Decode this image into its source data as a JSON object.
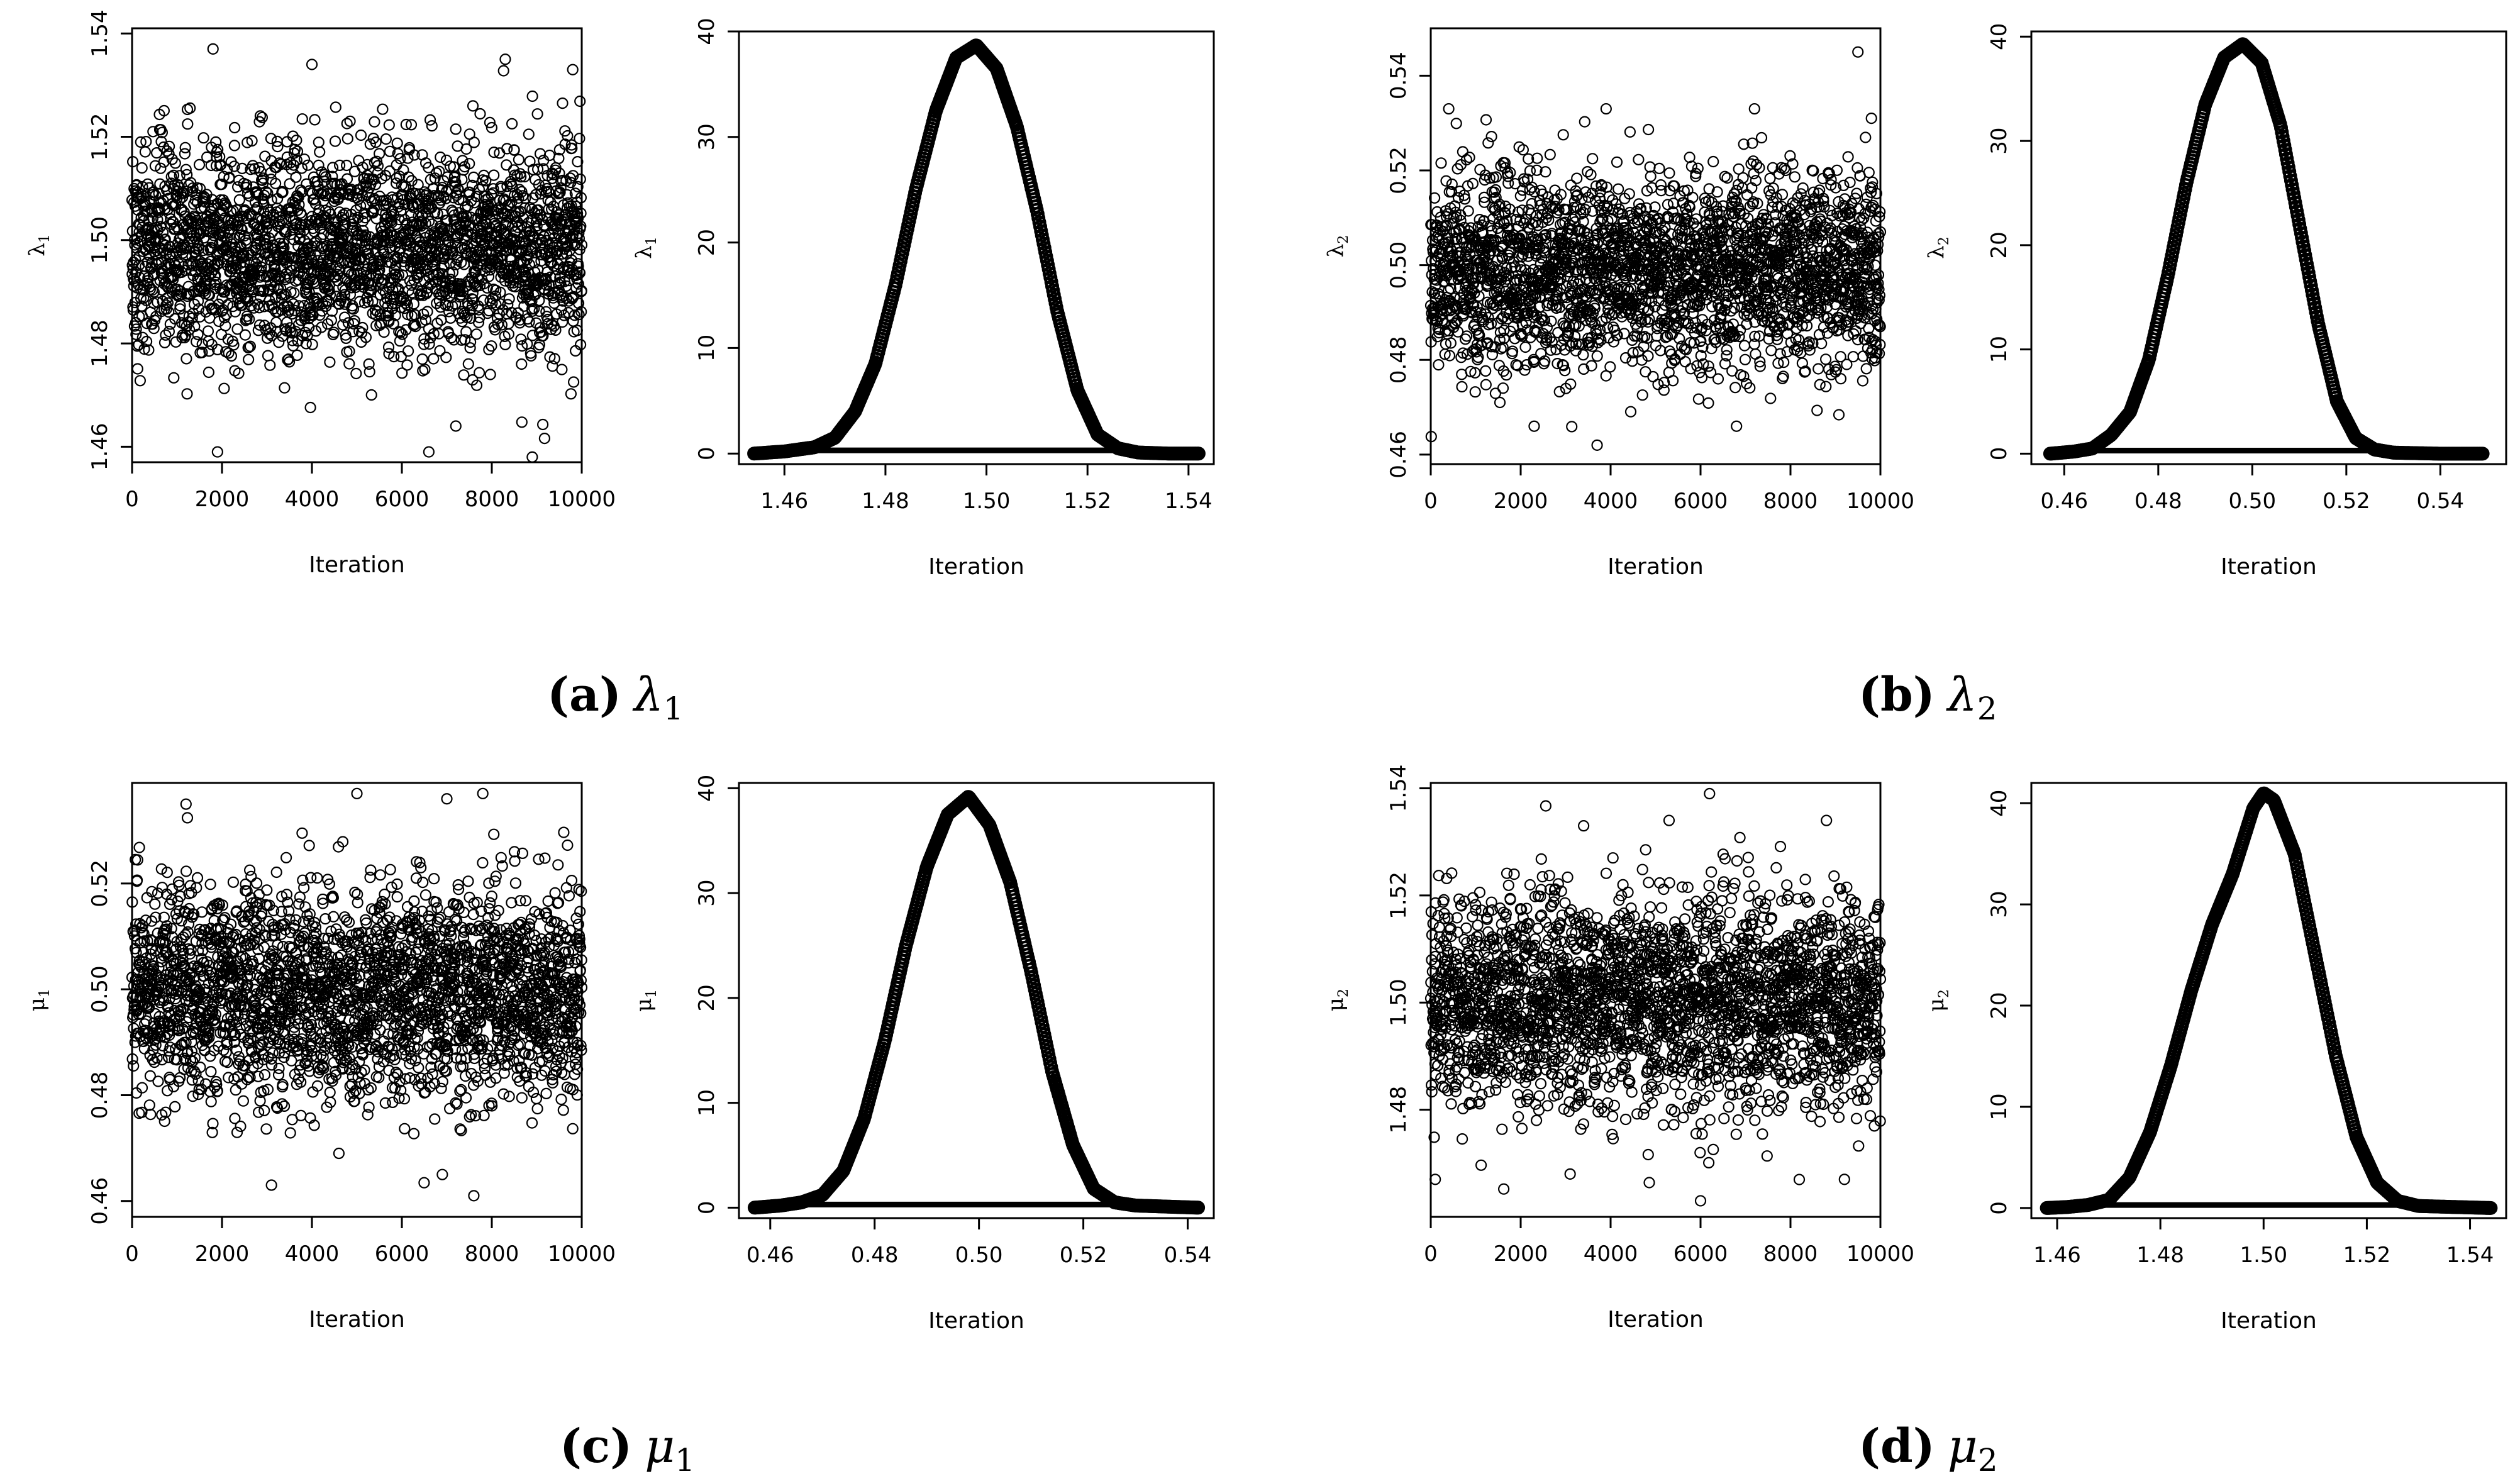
{
  "panels": [
    {
      "key": "(a)",
      "symbol": "λ",
      "subscript": "1",
      "trace_ylabel": {
        "symbol": "λ",
        "subscript": "1"
      },
      "density_ylabel": {
        "symbol": "λ",
        "subscript": "1"
      }
    },
    {
      "key": "(b)",
      "symbol": "λ",
      "subscript": "2",
      "trace_ylabel": {
        "symbol": "λ",
        "subscript": "2"
      },
      "density_ylabel": {
        "symbol": "λ",
        "subscript": "2"
      }
    },
    {
      "key": "(c)",
      "symbol": "μ",
      "subscript": "1",
      "trace_ylabel": {
        "symbol": "μ",
        "subscript": "1"
      },
      "density_ylabel": {
        "symbol": "μ",
        "subscript": "1"
      }
    },
    {
      "key": "(d)",
      "symbol": "μ",
      "subscript": "2",
      "trace_ylabel": {
        "symbol": "μ",
        "subscript": "2"
      },
      "density_ylabel": {
        "symbol": "μ",
        "subscript": "2"
      }
    }
  ],
  "chart_data": [
    {
      "type": "scatter",
      "panel": "(a)",
      "plot": "trace",
      "xlabel": "Iteration",
      "ylabel": "λ1",
      "xlim": [
        0,
        10000
      ],
      "ylim": [
        1.457,
        1.541
      ],
      "xticks": [
        0,
        2000,
        4000,
        6000,
        8000,
        10000
      ],
      "xtick_labels": [
        "0",
        "2000",
        "4000",
        "6000",
        "8000",
        "10000"
      ],
      "yticks": [
        1.46,
        1.48,
        1.5,
        1.52,
        1.54
      ],
      "ytick_labels": [
        "1.46",
        "1.48",
        "1.50",
        "1.52",
        "1.54"
      ],
      "n_iterations": 10000,
      "center": 1.498,
      "sd": 0.0101,
      "extreme_points": [
        [
          1800,
          1.537
        ],
        [
          8300,
          1.535
        ],
        [
          4000,
          1.534
        ],
        [
          9800,
          1.533
        ],
        [
          1900,
          1.459
        ],
        [
          6600,
          1.459
        ],
        [
          8900,
          1.458
        ],
        [
          7200,
          1.464
        ]
      ]
    },
    {
      "type": "line",
      "panel": "(a)",
      "plot": "density",
      "xlabel": "Iteration",
      "ylabel": "λ1",
      "xlim": [
        1.451,
        1.545
      ],
      "ylim": [
        -1,
        40
      ],
      "xticks": [
        1.46,
        1.48,
        1.5,
        1.52,
        1.54
      ],
      "xtick_labels": [
        "1.46",
        "1.48",
        "1.50",
        "1.52",
        "1.54"
      ],
      "yticks": [
        0,
        10,
        20,
        30,
        40
      ],
      "ytick_labels": [
        "0",
        "10",
        "20",
        "30",
        "40"
      ],
      "x": [
        1.454,
        1.46,
        1.466,
        1.47,
        1.474,
        1.478,
        1.482,
        1.486,
        1.49,
        1.494,
        1.498,
        1.502,
        1.506,
        1.51,
        1.514,
        1.518,
        1.522,
        1.526,
        1.53,
        1.536,
        1.542
      ],
      "y": [
        0,
        0.2,
        0.6,
        1.5,
        4,
        8.5,
        16,
        25,
        32.5,
        37.5,
        38.7,
        36.5,
        31,
        23,
        13.5,
        6,
        1.8,
        0.5,
        0.1,
        0,
        0
      ],
      "baseline": 0.3
    },
    {
      "type": "scatter",
      "panel": "(b)",
      "plot": "trace",
      "xlabel": "Iteration",
      "ylabel": "λ2",
      "xlim": [
        0,
        10000
      ],
      "ylim": [
        0.458,
        0.55
      ],
      "xticks": [
        0,
        2000,
        4000,
        6000,
        8000,
        10000
      ],
      "xtick_labels": [
        "0",
        "2000",
        "4000",
        "6000",
        "8000",
        "10000"
      ],
      "yticks": [
        0.46,
        0.48,
        0.5,
        0.52,
        0.54
      ],
      "ytick_labels": [
        "0.46",
        "0.48",
        "0.50",
        "0.52",
        "0.54"
      ],
      "n_iterations": 10000,
      "center": 0.499,
      "sd": 0.0101,
      "extreme_points": [
        [
          9500,
          0.545
        ],
        [
          400,
          0.533
        ],
        [
          3900,
          0.533
        ],
        [
          7200,
          0.533
        ],
        [
          3700,
          0.462
        ],
        [
          6800,
          0.466
        ],
        [
          2300,
          0.466
        ],
        [
          9800,
          0.531
        ]
      ]
    },
    {
      "type": "line",
      "panel": "(b)",
      "plot": "density",
      "xlabel": "Iteration",
      "ylabel": "λ2",
      "xlim": [
        0.453,
        0.554
      ],
      "ylim": [
        -1,
        40.5
      ],
      "xticks": [
        0.46,
        0.48,
        0.5,
        0.52,
        0.54
      ],
      "xtick_labels": [
        "0.46",
        "0.48",
        "0.50",
        "0.52",
        "0.54"
      ],
      "yticks": [
        0,
        10,
        20,
        30,
        40
      ],
      "ytick_labels": [
        "0",
        "10",
        "20",
        "30",
        "40"
      ],
      "x": [
        0.457,
        0.462,
        0.466,
        0.47,
        0.474,
        0.478,
        0.482,
        0.486,
        0.49,
        0.494,
        0.498,
        0.502,
        0.506,
        0.51,
        0.514,
        0.518,
        0.522,
        0.526,
        0.53,
        0.54,
        0.549
      ],
      "y": [
        0,
        0.2,
        0.5,
        1.8,
        4,
        9,
        17,
        26,
        33.5,
        38,
        39.3,
        37.5,
        31.5,
        22,
        12.5,
        5,
        1.5,
        0.4,
        0.1,
        0,
        0
      ],
      "baseline": 0.3
    },
    {
      "type": "scatter",
      "panel": "(c)",
      "plot": "trace",
      "xlabel": "Iteration",
      "ylabel": "μ1",
      "xlim": [
        0,
        10000
      ],
      "ylim": [
        0.457,
        0.539
      ],
      "xticks": [
        0,
        2000,
        4000,
        6000,
        8000,
        10000
      ],
      "xtick_labels": [
        "0",
        "2000",
        "4000",
        "6000",
        "8000",
        "10000"
      ],
      "yticks": [
        0.46,
        0.48,
        0.5,
        0.52
      ],
      "ytick_labels": [
        "0.46",
        "0.48",
        "0.50",
        "0.52"
      ],
      "n_iterations": 10000,
      "center": 0.499,
      "sd": 0.0101,
      "extreme_points": [
        [
          5000,
          0.537
        ],
        [
          7800,
          0.537
        ],
        [
          1200,
          0.535
        ],
        [
          7000,
          0.536
        ],
        [
          7600,
          0.461
        ],
        [
          3100,
          0.463
        ],
        [
          6900,
          0.465
        ],
        [
          4600,
          0.469
        ]
      ]
    },
    {
      "type": "line",
      "panel": "(c)",
      "plot": "density",
      "xlabel": "Iteration",
      "ylabel": "μ1",
      "xlim": [
        0.454,
        0.545
      ],
      "ylim": [
        -1,
        40.5
      ],
      "xticks": [
        0.46,
        0.48,
        0.5,
        0.52,
        0.54
      ],
      "xtick_labels": [
        "0.46",
        "0.48",
        "0.50",
        "0.52",
        "0.54"
      ],
      "yticks": [
        0,
        10,
        20,
        30,
        40
      ],
      "ytick_labels": [
        "0",
        "10",
        "20",
        "30",
        "40"
      ],
      "x": [
        0.457,
        0.462,
        0.466,
        0.47,
        0.474,
        0.478,
        0.482,
        0.486,
        0.49,
        0.494,
        0.498,
        0.502,
        0.506,
        0.51,
        0.514,
        0.518,
        0.522,
        0.526,
        0.53,
        0.536,
        0.542
      ],
      "y": [
        0,
        0.2,
        0.5,
        1.2,
        3.5,
        8.5,
        16,
        25,
        32.5,
        37.5,
        39.2,
        36.5,
        31,
        22.5,
        13,
        6,
        1.8,
        0.5,
        0.2,
        0.1,
        0
      ],
      "baseline": 0.3
    },
    {
      "type": "scatter",
      "panel": "(d)",
      "plot": "trace",
      "xlabel": "Iteration",
      "ylabel": "μ2",
      "xlim": [
        0,
        10000
      ],
      "ylim": [
        1.46,
        1.541
      ],
      "xticks": [
        0,
        2000,
        4000,
        6000,
        8000,
        10000
      ],
      "xtick_labels": [
        "0",
        "2000",
        "4000",
        "6000",
        "8000",
        "10000"
      ],
      "yticks": [
        1.48,
        1.5,
        1.52,
        1.54
      ],
      "ytick_labels": [
        "1.48",
        "1.50",
        "1.52",
        "1.54"
      ],
      "n_iterations": 10000,
      "center": 1.5,
      "sd": 0.0101,
      "extreme_points": [
        [
          6200,
          1.539
        ],
        [
          3400,
          1.533
        ],
        [
          8800,
          1.534
        ],
        [
          5300,
          1.534
        ],
        [
          6000,
          1.463
        ],
        [
          100,
          1.467
        ],
        [
          9200,
          1.467
        ],
        [
          3100,
          1.468
        ]
      ]
    },
    {
      "type": "line",
      "panel": "(d)",
      "plot": "density",
      "xlabel": "Iteration",
      "ylabel": "μ2",
      "xlim": [
        1.455,
        1.547
      ],
      "ylim": [
        -1,
        42
      ],
      "xticks": [
        1.46,
        1.48,
        1.5,
        1.52,
        1.54
      ],
      "xtick_labels": [
        "1.46",
        "1.48",
        "1.50",
        "1.52",
        "1.54"
      ],
      "yticks": [
        0,
        10,
        20,
        30,
        40
      ],
      "ytick_labels": [
        "0",
        "10",
        "20",
        "30",
        "40"
      ],
      "x": [
        1.458,
        1.462,
        1.466,
        1.47,
        1.474,
        1.478,
        1.482,
        1.486,
        1.49,
        1.494,
        1.498,
        1.5,
        1.502,
        1.506,
        1.51,
        1.514,
        1.518,
        1.522,
        1.526,
        1.53,
        1.544
      ],
      "y": [
        0,
        0.1,
        0.3,
        0.8,
        3,
        7.5,
        14,
        21.5,
        28,
        33,
        39.5,
        41,
        40.3,
        35,
        25,
        15,
        7,
        2.5,
        0.7,
        0.2,
        0
      ],
      "baseline": 0.3
    }
  ]
}
